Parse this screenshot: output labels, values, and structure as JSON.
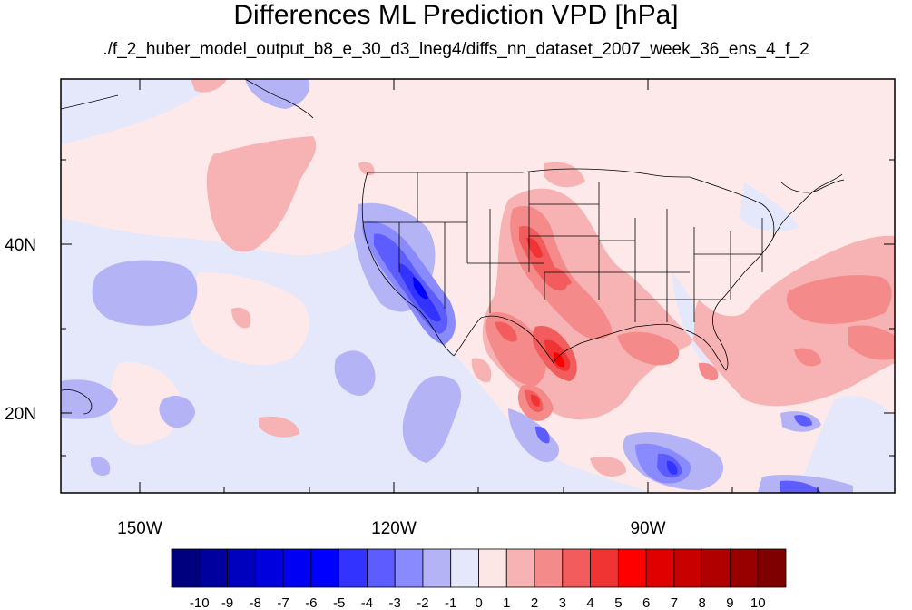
{
  "title": "Differences ML Prediction VPD [hPa]",
  "subtitle": "./f_2_huber_model_output_b8_e_30_d3_lneg4/diffs_nn_dataset_2007_week_36_ens_4_f_2",
  "axes": {
    "lon_ticks": [
      "150W",
      "120W",
      "90W"
    ],
    "lat_ticks": [
      "40N",
      "20N"
    ]
  },
  "colorbar": {
    "labels": [
      "-10",
      "-9",
      "-8",
      "-7",
      "-6",
      "-5",
      "-4",
      "-3",
      "-2",
      "-1",
      "0",
      "1",
      "2",
      "3",
      "4",
      "5",
      "6",
      "7",
      "8",
      "9",
      "10"
    ],
    "colors": [
      "#00007f",
      "#00009f",
      "#0000bf",
      "#0000df",
      "#0000f5",
      "#0000ff",
      "#3333ff",
      "#5c5cff",
      "#8a8aff",
      "#b3b3f5",
      "#e5e8fb",
      "#fde6e6",
      "#f7b3b3",
      "#f58a8a",
      "#f25c5c",
      "#f03333",
      "#ff0000",
      "#e00000",
      "#c80000",
      "#b00000",
      "#980000",
      "#7f0000"
    ]
  },
  "colors": {
    "background": "#fde9e9",
    "neg1": "#e5e8fb",
    "neg2": "#b3b3f5",
    "neg3": "#8a8aff",
    "neg4": "#5c5cff",
    "neg5": "#3333ff",
    "neg6": "#0000ff",
    "pos1": "#f7b3b3",
    "pos2": "#f58a8a",
    "pos3": "#f25c5c",
    "pos4": "#f03333",
    "pos5": "#ff0000"
  }
}
